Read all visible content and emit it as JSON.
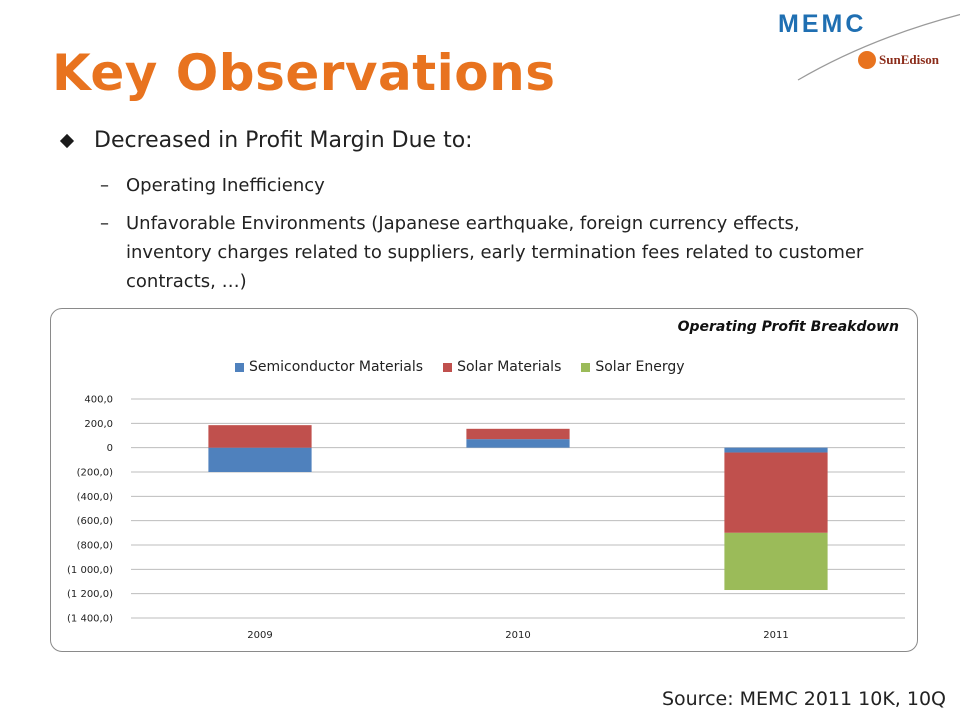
{
  "slide": {
    "title": "Key Observations",
    "logo_primary": "MEMC",
    "logo_secondary": "SunEdison",
    "bullet": "Decreased in Profit Margin Due to:",
    "sub_bullets": [
      "Operating Inefficiency",
      "Unfavorable Environments (Japanese earthquake, foreign currency effects, inventory charges related to suppliers, early termination fees related to customer contracts, …)"
    ],
    "dash": "–",
    "source": "Source: MEMC 2011 10K, 10Q"
  },
  "chart_data": {
    "type": "bar",
    "stacked": true,
    "title": "Operating Profit Breakdown",
    "categories": [
      "2009",
      "2010",
      "2011"
    ],
    "series": [
      {
        "name": "Semiconductor Materials",
        "color": "#4F81BD",
        "values": [
          -200,
          70,
          -40
        ]
      },
      {
        "name": "Solar Materials",
        "color": "#C0504D",
        "values": [
          185,
          85,
          -660
        ]
      },
      {
        "name": "Solar Energy",
        "color": "#9BBB59",
        "values": [
          0,
          0,
          -470
        ]
      }
    ],
    "ylim": [
      -1400,
      400
    ],
    "yticks": [
      400,
      200,
      0,
      -200,
      -400,
      -600,
      -800,
      -1000,
      -1200,
      -1400
    ],
    "ytick_labels": [
      "400,0",
      "200,0",
      "0",
      "(200,0)",
      "(400,0)",
      "(600,0)",
      "(800,0)",
      "(1 000,0)",
      "(1 200,0)",
      "(1 400,0)"
    ],
    "grid": true,
    "legend_position": "top"
  }
}
